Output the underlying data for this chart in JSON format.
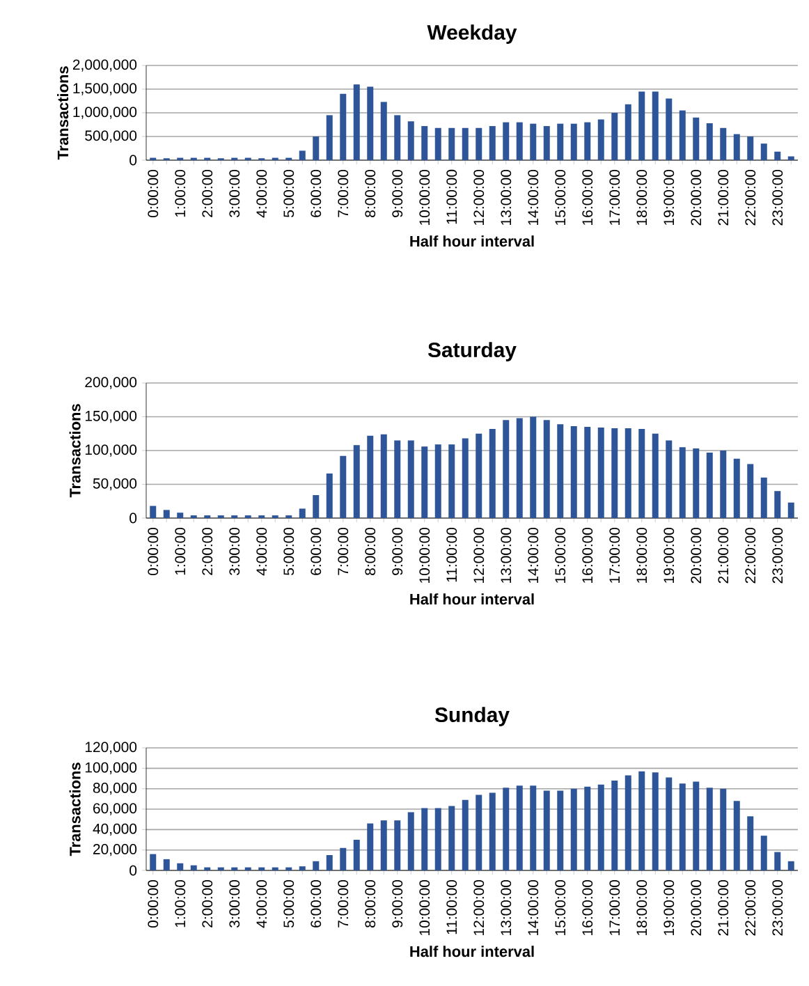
{
  "chart_data": [
    {
      "type": "bar",
      "title": "Weekday",
      "xlabel": "Half hour interval",
      "ylabel": "Transactions",
      "categories": [
        "0:00:00",
        null,
        "1:00:00",
        null,
        "2:00:00",
        null,
        "3:00:00",
        null,
        "4:00:00",
        null,
        "5:00:00",
        null,
        "6:00:00",
        null,
        "7:00:00",
        null,
        "8:00:00",
        null,
        "9:00:00",
        null,
        "10:00:00",
        null,
        "11:00:00",
        null,
        "12:00:00",
        null,
        "13:00:00",
        null,
        "14:00:00",
        null,
        "15:00:00",
        null,
        "16:00:00",
        null,
        "17:00:00",
        null,
        "18:00:00",
        null,
        "19:00:00",
        null,
        "20:00:00",
        null,
        "21:00:00",
        null,
        "22:00:00",
        null,
        "23:00:00",
        null
      ],
      "values": [
        50000,
        40000,
        50000,
        50000,
        50000,
        40000,
        50000,
        50000,
        40000,
        50000,
        50000,
        200000,
        500000,
        950000,
        1400000,
        1600000,
        1550000,
        1230000,
        950000,
        820000,
        720000,
        680000,
        680000,
        680000,
        680000,
        720000,
        800000,
        800000,
        770000,
        720000,
        770000,
        770000,
        800000,
        860000,
        1000000,
        1180000,
        1450000,
        1450000,
        1300000,
        1050000,
        900000,
        780000,
        680000,
        550000,
        500000,
        350000,
        180000,
        80000
      ],
      "color": "#2e5597",
      "ylim": [
        0,
        2000000
      ],
      "yticks": [
        {
          "value": 0,
          "label": "0"
        },
        {
          "value": 500000,
          "label": "500,000"
        },
        {
          "value": 1000000,
          "label": "1,000,000"
        },
        {
          "value": 1500000,
          "label": "1,500,000"
        },
        {
          "value": 2000000,
          "label": "2,000,000"
        }
      ],
      "grid": "y"
    },
    {
      "type": "bar",
      "title": "Saturday",
      "xlabel": "Half hour interval",
      "ylabel": "Transactions",
      "categories": [
        "0:00:00",
        null,
        "1:00:00",
        null,
        "2:00:00",
        null,
        "3:00:00",
        null,
        "4:00:00",
        null,
        "5:00:00",
        null,
        "6:00:00",
        null,
        "7:00:00",
        null,
        "8:00:00",
        null,
        "9:00:00",
        null,
        "10:00:00",
        null,
        "11:00:00",
        null,
        "12:00:00",
        null,
        "13:00:00",
        null,
        "14:00:00",
        null,
        "15:00:00",
        null,
        "16:00:00",
        null,
        "17:00:00",
        null,
        "18:00:00",
        null,
        "19:00:00",
        null,
        "20:00:00",
        null,
        "21:00:00",
        null,
        "22:00:00",
        null,
        "23:00:00",
        null
      ],
      "values": [
        18000,
        12000,
        8000,
        4000,
        4000,
        4000,
        4000,
        4000,
        4000,
        4000,
        4000,
        14000,
        34000,
        66000,
        92000,
        108000,
        122000,
        124000,
        115000,
        115000,
        106000,
        109000,
        109000,
        118000,
        125000,
        132000,
        145000,
        148000,
        150000,
        145000,
        139000,
        136000,
        135000,
        134000,
        133000,
        133000,
        132000,
        125000,
        115000,
        105000,
        103000,
        97000,
        100000,
        88000,
        80000,
        60000,
        40000,
        23000
      ],
      "color": "#2e5597",
      "ylim": [
        0,
        200000
      ],
      "yticks": [
        {
          "value": 0,
          "label": "0"
        },
        {
          "value": 50000,
          "label": "50,000"
        },
        {
          "value": 100000,
          "label": "100,000"
        },
        {
          "value": 150000,
          "label": "150,000"
        },
        {
          "value": 200000,
          "label": "200,000"
        }
      ],
      "grid": "y"
    },
    {
      "type": "bar",
      "title": "Sunday",
      "xlabel": "Half hour interval",
      "ylabel": "Transactions",
      "categories": [
        "0:00:00",
        null,
        "1:00:00",
        null,
        "2:00:00",
        null,
        "3:00:00",
        null,
        "4:00:00",
        null,
        "5:00:00",
        null,
        "6:00:00",
        null,
        "7:00:00",
        null,
        "8:00:00",
        null,
        "9:00:00",
        null,
        "10:00:00",
        null,
        "11:00:00",
        null,
        "12:00:00",
        null,
        "13:00:00",
        null,
        "14:00:00",
        null,
        "15:00:00",
        null,
        "16:00:00",
        null,
        "17:00:00",
        null,
        "18:00:00",
        null,
        "19:00:00",
        null,
        "20:00:00",
        null,
        "21:00:00",
        null,
        "22:00:00",
        null,
        "23:00:00",
        null
      ],
      "values": [
        16000,
        11000,
        7000,
        5000,
        3000,
        3000,
        3000,
        3000,
        3000,
        3000,
        3000,
        4000,
        9000,
        15000,
        22000,
        30000,
        46000,
        49000,
        49000,
        57000,
        61000,
        61000,
        63000,
        69000,
        74000,
        76000,
        81000,
        83000,
        83000,
        78000,
        78000,
        80000,
        82000,
        84000,
        88000,
        93000,
        97000,
        96000,
        91000,
        85000,
        87000,
        81000,
        80000,
        68000,
        53000,
        34000,
        18000,
        9000
      ],
      "color": "#2e5597",
      "ylim": [
        0,
        120000
      ],
      "yticks": [
        {
          "value": 0,
          "label": "0"
        },
        {
          "value": 20000,
          "label": "20,000"
        },
        {
          "value": 40000,
          "label": "40,000"
        },
        {
          "value": 60000,
          "label": "60,000"
        },
        {
          "value": 80000,
          "label": "80,000"
        },
        {
          "value": 100000,
          "label": "100,000"
        },
        {
          "value": 120000,
          "label": "120,000"
        }
      ],
      "grid": "y"
    }
  ]
}
